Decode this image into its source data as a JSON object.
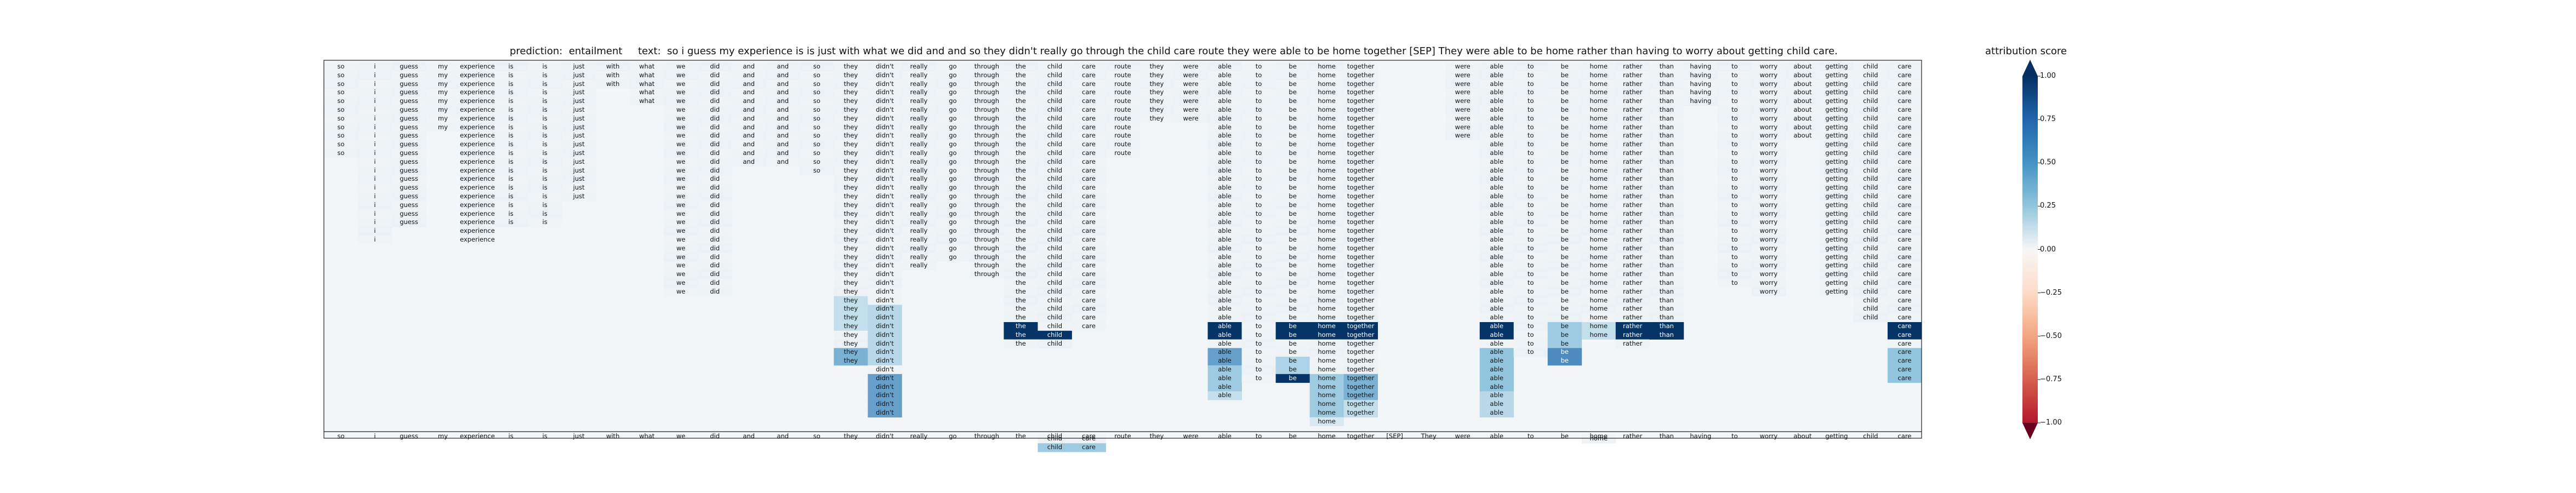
{
  "header": {
    "prediction_label": "prediction:",
    "prediction_value": "entailment",
    "text_label": "text:",
    "text_value": "so i guess my experience is is just with what we did and and so they didn't really go through the child care route they were able to be home together [SEP] They were able to be home rather than having to worry about getting child care."
  },
  "colorbar": {
    "title": "attribution score",
    "ticks": [
      "1.00",
      "0.75",
      "0.50",
      "0.25",
      "0.00",
      "−0.25",
      "−0.50",
      "−0.75",
      "−1.00"
    ],
    "tick_values": [
      1.0,
      0.75,
      0.5,
      0.25,
      0.0,
      -0.25,
      -0.5,
      -0.75,
      -1.0
    ],
    "colors": {
      "positive": "#08306b",
      "neutral": "#f7f7f7",
      "negative": "#67001f"
    }
  },
  "chart_data": {
    "type": "heatmap",
    "title": "",
    "xlabel": "",
    "ylabel": "",
    "value_range": [
      -1.0,
      1.0
    ],
    "tokens": [
      "so",
      "i",
      "guess",
      "my",
      "experience",
      "is",
      "is",
      "just",
      "with",
      "what",
      "we",
      "did",
      "and",
      "and",
      "so",
      "they",
      "didn't",
      "really",
      "go",
      "through",
      "the",
      "child",
      "care",
      "route",
      "they",
      "were",
      "able",
      "to",
      "be",
      "home",
      "together",
      "[SEP]",
      "They",
      "were",
      "able",
      "to",
      "be",
      "home",
      "rather",
      "than",
      "having",
      "to",
      "worry",
      "about",
      "getting",
      "child",
      "care"
    ],
    "column_spans": [
      [
        0,
        11
      ],
      [
        0,
        21
      ],
      [
        0,
        19
      ],
      [
        0,
        8
      ],
      [
        0,
        21
      ],
      [
        0,
        19
      ],
      [
        0,
        19
      ],
      [
        0,
        16
      ],
      [
        0,
        3
      ],
      [
        0,
        5
      ],
      [
        0,
        27
      ],
      [
        0,
        27
      ],
      [
        0,
        12
      ],
      [
        0,
        12
      ],
      [
        0,
        13
      ],
      [
        0,
        35
      ],
      [
        0,
        41
      ],
      [
        0,
        24
      ],
      [
        0,
        23
      ],
      [
        0,
        25
      ],
      [
        0,
        33
      ],
      [
        0,
        33
      ],
      [
        0,
        31
      ],
      [
        0,
        11
      ],
      [
        0,
        7
      ],
      [
        0,
        7
      ],
      [
        0,
        39
      ],
      [
        0,
        37
      ],
      [
        0,
        37
      ],
      [
        0,
        42
      ],
      [
        0,
        41
      ],
      [
        0,
        0
      ],
      [
        0,
        0
      ],
      [
        0,
        9
      ],
      [
        0,
        41
      ],
      [
        0,
        34
      ],
      [
        0,
        35
      ],
      [
        0,
        32
      ],
      [
        0,
        33
      ],
      [
        0,
        32
      ],
      [
        0,
        5
      ],
      [
        0,
        26
      ],
      [
        0,
        27
      ],
      [
        0,
        9
      ],
      [
        0,
        27
      ],
      [
        0,
        30
      ],
      [
        0,
        37
      ]
    ],
    "extra_labels": [
      {
        "token": "child",
        "column": 21,
        "row": 43,
        "value": 0.05
      },
      {
        "token": "care",
        "column": 22,
        "row": 43,
        "value": 0.05
      },
      {
        "token": "child",
        "column": 21,
        "row": 44,
        "value": 0.45
      },
      {
        "token": "care",
        "column": 22,
        "row": 44,
        "value": 0.45
      },
      {
        "token": "home",
        "column": 37,
        "row": 43,
        "value": 0.05
      }
    ],
    "highlights": [
      {
        "column": 15,
        "rows": [
          [
            27,
            30,
            0.3
          ],
          [
            33,
            33,
            0.55
          ],
          [
            34,
            34,
            0.55
          ],
          [
            35,
            35,
            0.4
          ]
        ]
      },
      {
        "column": 16,
        "rows": [
          [
            28,
            34,
            0.35
          ],
          [
            36,
            41,
            0.6
          ]
        ]
      },
      {
        "column": 20,
        "rows": [
          [
            30,
            30,
            0.98
          ],
          [
            31,
            31,
            0.98
          ]
        ]
      },
      {
        "column": 21,
        "rows": [
          [
            31,
            31,
            0.98
          ]
        ]
      },
      {
        "column": 22,
        "rows": [
          [
            31,
            31,
            0.98
          ]
        ]
      },
      {
        "column": 26,
        "rows": [
          [
            30,
            31,
            0.98
          ],
          [
            33,
            34,
            0.6
          ],
          [
            35,
            37,
            0.45
          ],
          [
            38,
            38,
            0.3
          ]
        ]
      },
      {
        "column": 28,
        "rows": [
          [
            30,
            31,
            0.98
          ],
          [
            34,
            35,
            0.4
          ],
          [
            36,
            37,
            0.98
          ]
        ]
      },
      {
        "column": 29,
        "rows": [
          [
            30,
            31,
            0.98
          ],
          [
            36,
            40,
            0.45
          ],
          [
            41,
            42,
            0.2
          ]
        ]
      },
      {
        "column": 30,
        "rows": [
          [
            30,
            31,
            0.98
          ],
          [
            36,
            38,
            0.55
          ],
          [
            39,
            41,
            0.3
          ]
        ]
      },
      {
        "column": 33,
        "rows": [
          [
            30,
            30,
            0.98
          ]
        ]
      },
      {
        "column": 34,
        "rows": [
          [
            30,
            31,
            0.98
          ],
          [
            33,
            37,
            0.5
          ],
          [
            38,
            41,
            0.35
          ]
        ]
      },
      {
        "column": 36,
        "rows": [
          [
            30,
            32,
            0.45
          ],
          [
            33,
            35,
            0.65
          ]
        ]
      },
      {
        "column": 37,
        "rows": [
          [
            30,
            32,
            0.3
          ]
        ]
      },
      {
        "column": 38,
        "rows": [
          [
            30,
            31,
            0.98
          ],
          [
            33,
            33,
            0.45
          ]
        ]
      },
      {
        "column": 39,
        "rows": [
          [
            30,
            31,
            0.98
          ],
          [
            32,
            32,
            0.35
          ]
        ]
      },
      {
        "column": 45,
        "rows": [
          [
            30,
            30,
            0.45
          ]
        ]
      },
      {
        "column": 46,
        "rows": [
          [
            30,
            31,
            0.98
          ],
          [
            33,
            36,
            0.5
          ],
          [
            37,
            37,
            0.3
          ]
        ]
      }
    ]
  }
}
